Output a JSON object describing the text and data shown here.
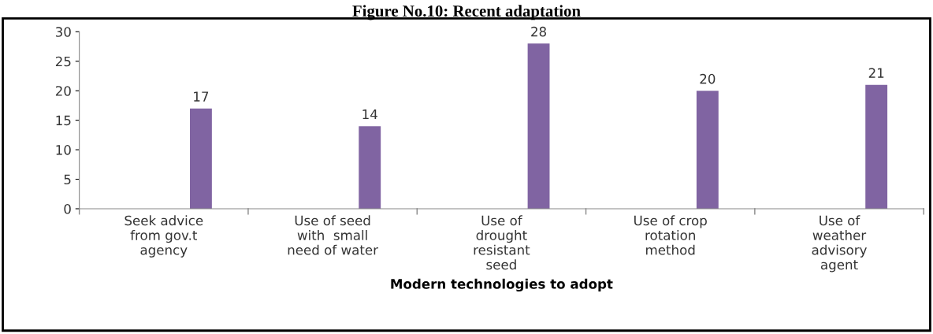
{
  "chart_data": {
    "type": "bar",
    "title": "Figure No.10: Recent adaptation",
    "xlabel": "Modern technologies to adopt",
    "categories": [
      "Seek advice\nfrom gov.t\nagency",
      "Use of seed\nwith  small\nneed of water",
      "Use of\ndrought\nresistant\nseed",
      "Use of crop\nrotation\nmethod",
      "Use of\nweather\nadvisory\nagent"
    ],
    "values": [
      17,
      14,
      28,
      20,
      21
    ],
    "color": "#8064a2",
    "ylim": [
      0,
      30
    ],
    "yticks": [
      0,
      5,
      10,
      15,
      20,
      25,
      30
    ],
    "data_labels": true,
    "grid": false,
    "legend": false
  }
}
